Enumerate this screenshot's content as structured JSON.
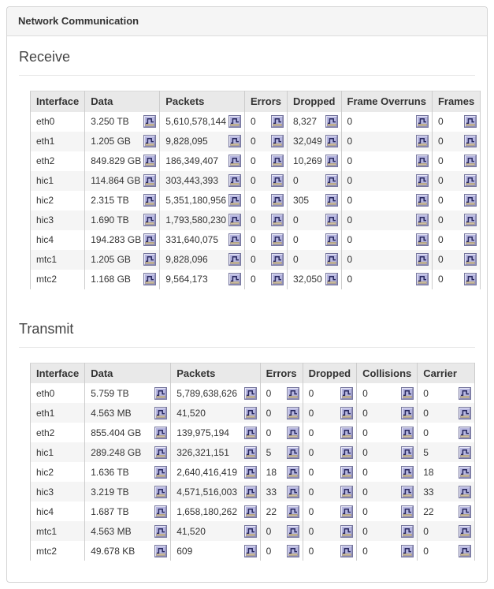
{
  "panel": {
    "title": "Network Communication"
  },
  "sections": [
    {
      "title": "Receive",
      "columns": [
        "Interface",
        "Data",
        "Packets",
        "Errors",
        "Dropped",
        "Frame Overruns",
        "Frames"
      ],
      "rows": [
        {
          "interface": "eth0",
          "cells": [
            "3.250 TB",
            "5,610,578,144",
            "0",
            "8,327",
            "0",
            "0"
          ]
        },
        {
          "interface": "eth1",
          "cells": [
            "1.205 GB",
            "9,828,095",
            "0",
            "32,049",
            "0",
            "0"
          ]
        },
        {
          "interface": "eth2",
          "cells": [
            "849.829 GB",
            "186,349,407",
            "0",
            "10,269",
            "0",
            "0"
          ]
        },
        {
          "interface": "hic1",
          "cells": [
            "114.864 GB",
            "303,443,393",
            "0",
            "0",
            "0",
            "0"
          ]
        },
        {
          "interface": "hic2",
          "cells": [
            "2.315 TB",
            "5,351,180,956",
            "0",
            "305",
            "0",
            "0"
          ]
        },
        {
          "interface": "hic3",
          "cells": [
            "1.690 TB",
            "1,793,580,230",
            "0",
            "0",
            "0",
            "0"
          ]
        },
        {
          "interface": "hic4",
          "cells": [
            "194.283 GB",
            "331,640,075",
            "0",
            "0",
            "0",
            "0"
          ]
        },
        {
          "interface": "mtc1",
          "cells": [
            "1.205 GB",
            "9,828,096",
            "0",
            "0",
            "0",
            "0"
          ]
        },
        {
          "interface": "mtc2",
          "cells": [
            "1.168 GB",
            "9,564,173",
            "0",
            "32,050",
            "0",
            "0"
          ]
        }
      ]
    },
    {
      "title": "Transmit",
      "columns": [
        "Interface",
        "Data",
        "Packets",
        "Errors",
        "Dropped",
        "Collisions",
        "Carrier"
      ],
      "rows": [
        {
          "interface": "eth0",
          "cells": [
            "5.759 TB",
            "5,789,638,626",
            "0",
            "0",
            "0",
            "0"
          ]
        },
        {
          "interface": "eth1",
          "cells": [
            "4.563 MB",
            "41,520",
            "0",
            "0",
            "0",
            "0"
          ]
        },
        {
          "interface": "eth2",
          "cells": [
            "855.404 GB",
            "139,975,194",
            "0",
            "0",
            "0",
            "0"
          ]
        },
        {
          "interface": "hic1",
          "cells": [
            "289.248 GB",
            "326,321,151",
            "5",
            "0",
            "0",
            "5"
          ]
        },
        {
          "interface": "hic2",
          "cells": [
            "1.636 TB",
            "2,640,416,419",
            "18",
            "0",
            "0",
            "18"
          ]
        },
        {
          "interface": "hic3",
          "cells": [
            "3.219 TB",
            "4,571,516,003",
            "33",
            "0",
            "0",
            "33"
          ]
        },
        {
          "interface": "hic4",
          "cells": [
            "1.687 TB",
            "1,658,180,262",
            "22",
            "0",
            "0",
            "22"
          ]
        },
        {
          "interface": "mtc1",
          "cells": [
            "4.563 MB",
            "41,520",
            "0",
            "0",
            "0",
            "0"
          ]
        },
        {
          "interface": "mtc2",
          "cells": [
            "49.678 KB",
            "609",
            "0",
            "0",
            "0",
            "0"
          ]
        }
      ]
    }
  ],
  "icons": {
    "chart": "chart-icon"
  },
  "colors": {
    "panel_header_bg": "#f5f5f5",
    "table_header_bg": "#e9e9e9",
    "row_stripe": "#f5f5f5",
    "column_border": "#cccccc",
    "chart_icon_bg": "#b6b6e0",
    "chart_icon_glyph": "#28285f",
    "chart_icon_baseline": "#cfc0a0"
  }
}
